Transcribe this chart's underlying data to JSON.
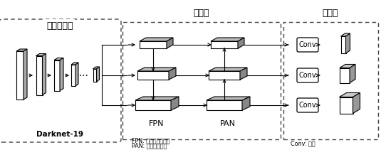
{
  "title_backbone": "基本骨架端",
  "title_detect": "检测端",
  "title_output": "输出端",
  "label_darknet": "Darknet-19",
  "label_fpn": "FPN",
  "label_pan": "PAN",
  "label_conv": "Conv",
  "footnote1": "FPN: 特征金字塔网络",
  "footnote2": "PAN: 路径聚合网络",
  "footnote3": "Conv: 卷积",
  "bg_color": "#ffffff"
}
